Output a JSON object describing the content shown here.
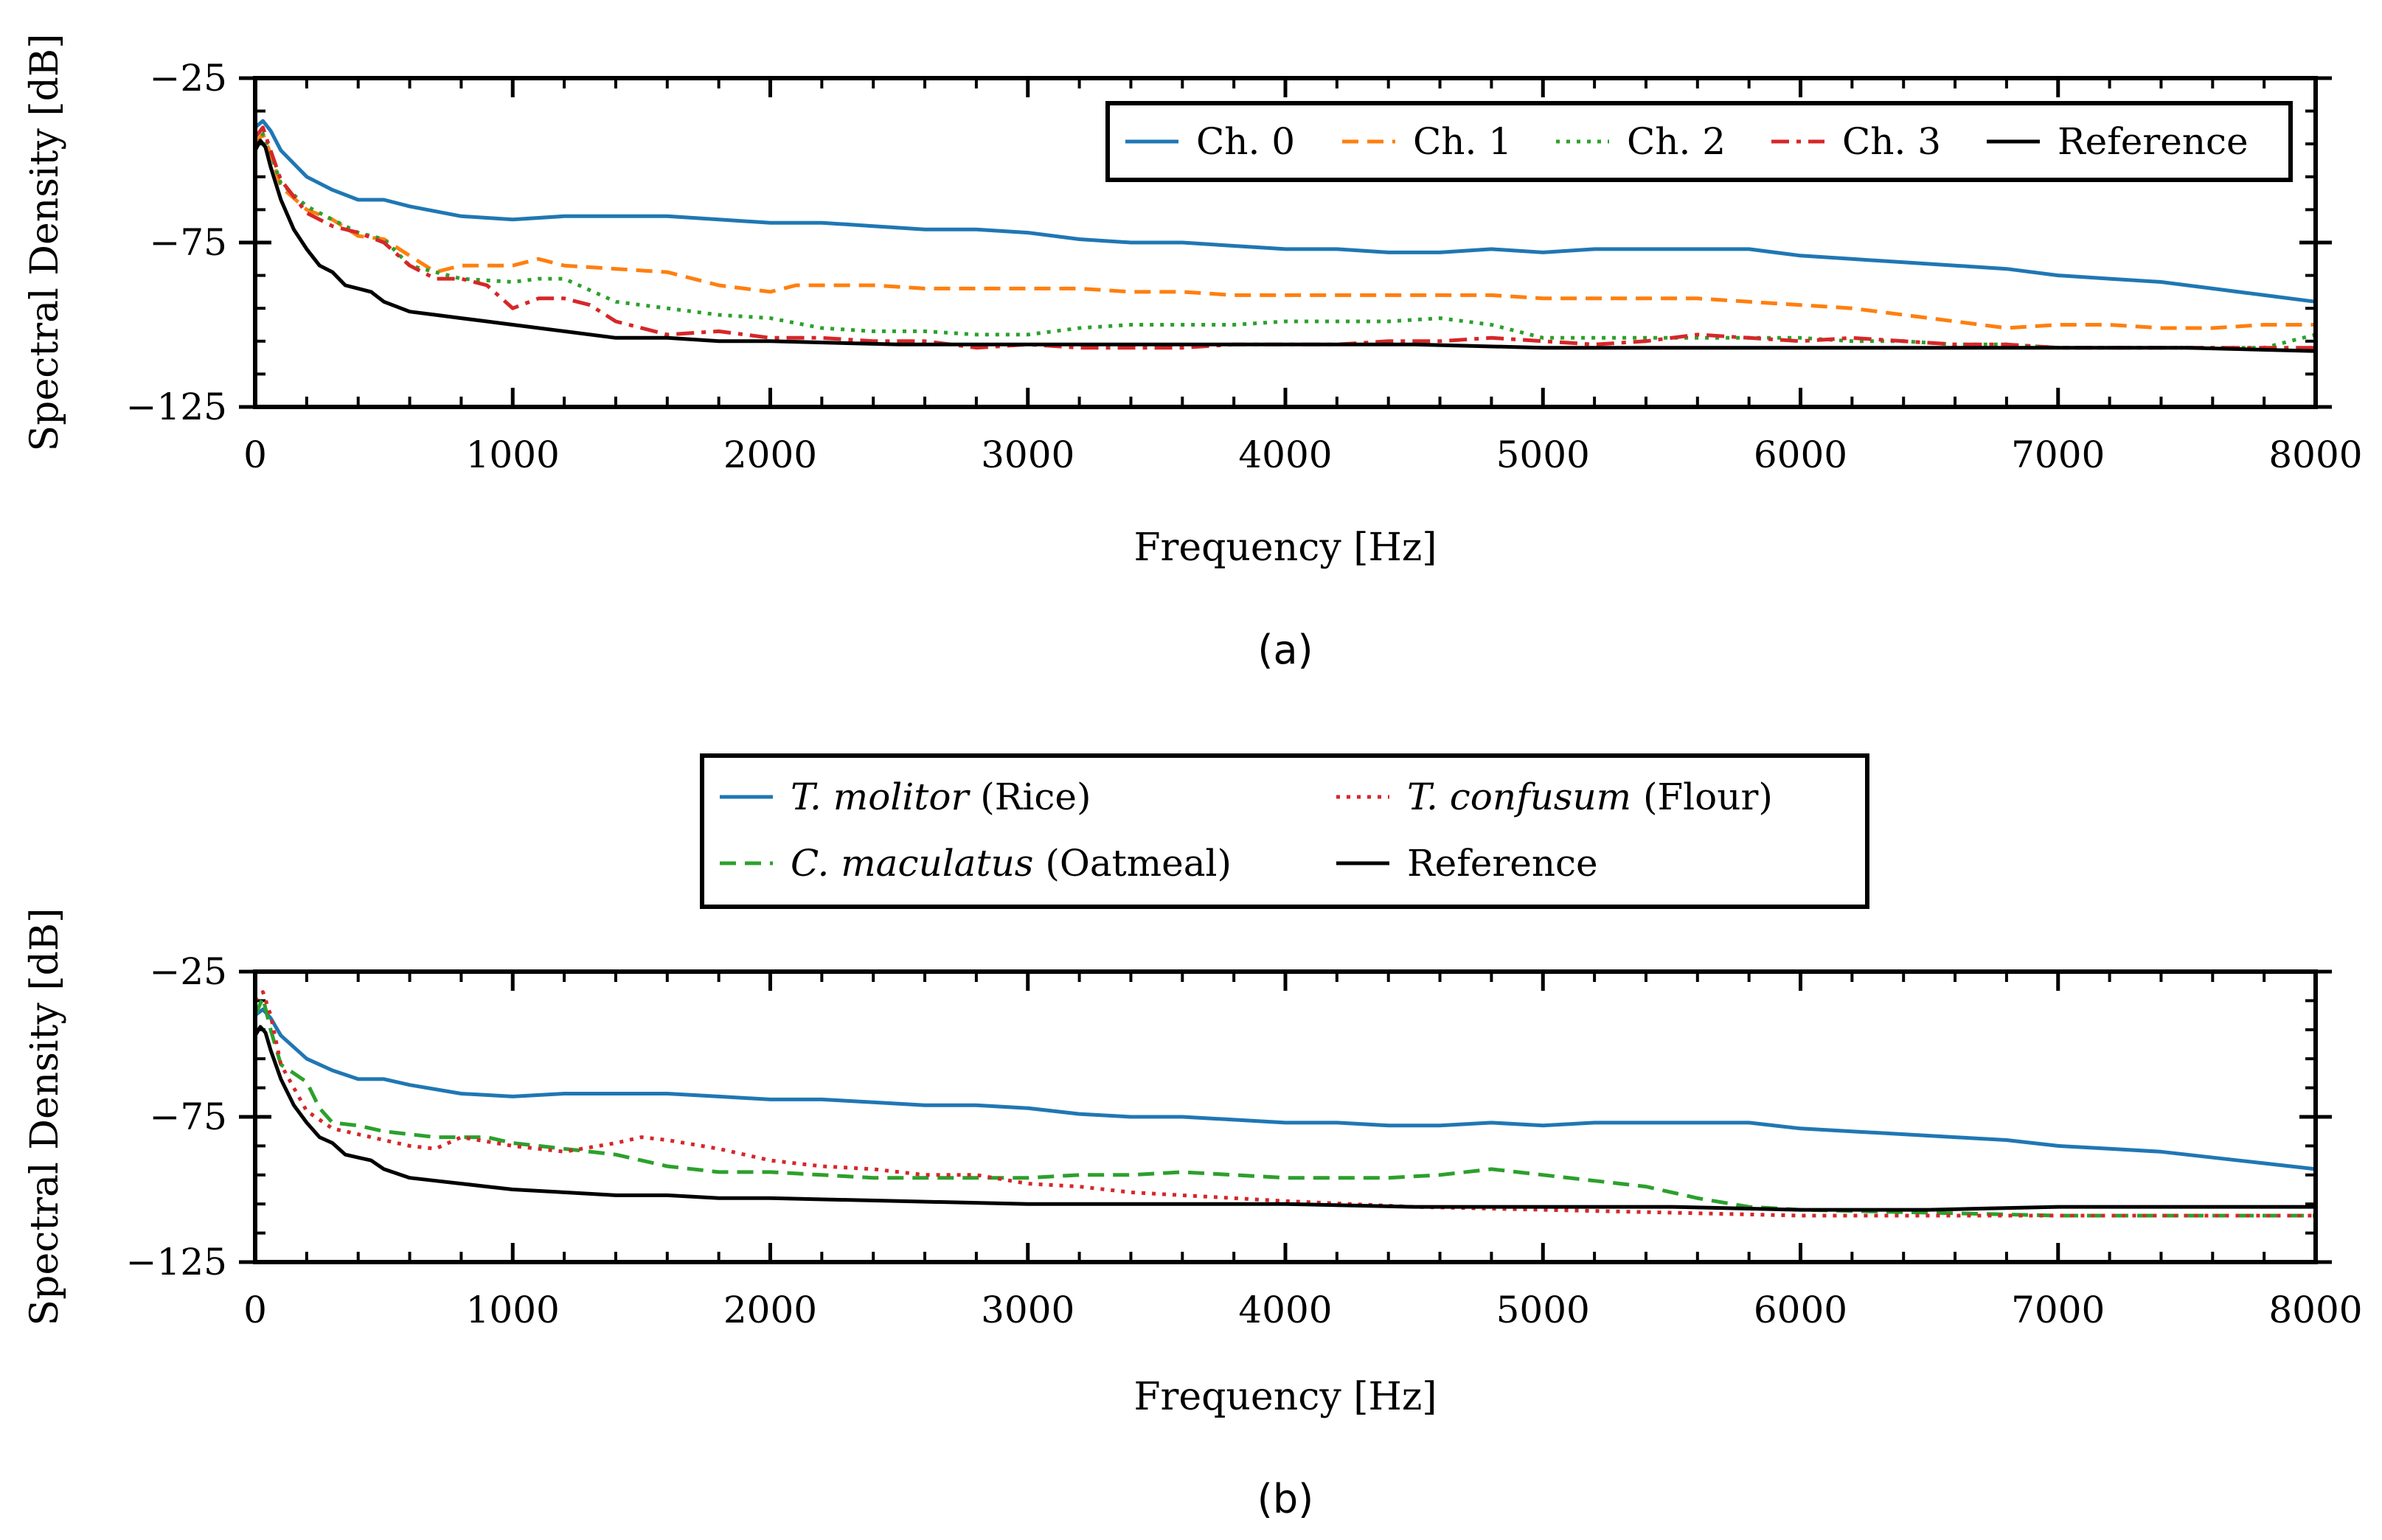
{
  "chart_data": [
    {
      "type": "line",
      "panel_label": "(a)",
      "xlabel": "Frequency [Hz]",
      "ylabel": "Spectral Density [dB]",
      "xlim": [
        0,
        8000
      ],
      "ylim": [
        -125,
        -25
      ],
      "xticks": [
        0,
        1000,
        2000,
        3000,
        4000,
        5000,
        6000,
        7000,
        8000
      ],
      "yticks": [
        -25,
        -75,
        -125
      ],
      "legend_placement": "top-right",
      "series": [
        {
          "name": "Ch. 0",
          "color": "#1f77b4",
          "style": "solid",
          "x": [
            0,
            30,
            60,
            100,
            200,
            300,
            400,
            500,
            600,
            800,
            1000,
            1200,
            1400,
            1600,
            1800,
            2000,
            2200,
            2400,
            2600,
            2800,
            3000,
            3200,
            3400,
            3600,
            3800,
            4000,
            4200,
            4400,
            4600,
            4800,
            5000,
            5200,
            5400,
            5600,
            5800,
            6000,
            6200,
            6400,
            6600,
            6800,
            7000,
            7200,
            7400,
            7600,
            7800,
            8000
          ],
          "values": [
            -40,
            -38,
            -41,
            -47,
            -55,
            -59,
            -62,
            -62,
            -64,
            -67,
            -68,
            -67,
            -67,
            -67,
            -68,
            -69,
            -69,
            -70,
            -71,
            -71,
            -72,
            -74,
            -75,
            -75,
            -76,
            -77,
            -77,
            -78,
            -78,
            -77,
            -78,
            -77,
            -77,
            -77,
            -77,
            -79,
            -80,
            -81,
            -82,
            -83,
            -85,
            -86,
            -87,
            -89,
            -91,
            -93
          ]
        },
        {
          "name": "Ch. 1",
          "color": "#ff7f0e",
          "style": "dashed",
          "x": [
            0,
            30,
            60,
            100,
            200,
            300,
            400,
            500,
            600,
            700,
            800,
            1000,
            1100,
            1200,
            1400,
            1600,
            1800,
            1900,
            2000,
            2100,
            2200,
            2400,
            2600,
            2800,
            3000,
            3200,
            3400,
            3600,
            3800,
            4000,
            4200,
            4400,
            4600,
            4800,
            5000,
            5200,
            5400,
            5600,
            5800,
            6000,
            6200,
            6400,
            6600,
            6800,
            7000,
            7200,
            7400,
            7600,
            7800,
            8000
          ],
          "values": [
            -45,
            -42,
            -48,
            -58,
            -65,
            -68,
            -73,
            -74,
            -79,
            -84,
            -82,
            -82,
            -80,
            -82,
            -83,
            -84,
            -88,
            -89,
            -90,
            -88,
            -88,
            -88,
            -89,
            -89,
            -89,
            -89,
            -90,
            -90,
            -91,
            -91,
            -91,
            -91,
            -91,
            -91,
            -92,
            -92,
            -92,
            -92,
            -93,
            -94,
            -95,
            -97,
            -99,
            -101,
            -100,
            -100,
            -101,
            -101,
            -100,
            -100
          ]
        },
        {
          "name": "Ch. 2",
          "color": "#2ca02c",
          "style": "dotted",
          "x": [
            0,
            30,
            60,
            100,
            200,
            300,
            400,
            500,
            600,
            700,
            800,
            1000,
            1100,
            1200,
            1400,
            1600,
            1800,
            2000,
            2200,
            2400,
            2600,
            2800,
            3000,
            3200,
            3400,
            3600,
            3800,
            4000,
            4200,
            4400,
            4600,
            4800,
            5000,
            5200,
            5400,
            5600,
            5800,
            6000,
            6200,
            6400,
            6600,
            6800,
            7000,
            7200,
            7400,
            7600,
            7800,
            8000
          ],
          "values": [
            -45,
            -42,
            -48,
            -57,
            -64,
            -68,
            -72,
            -74,
            -82,
            -84,
            -86,
            -87,
            -86,
            -86,
            -93,
            -95,
            -97,
            -98,
            -101,
            -102,
            -102,
            -103,
            -103,
            -101,
            -100,
            -100,
            -100,
            -99,
            -99,
            -99,
            -98,
            -100,
            -104,
            -104,
            -104,
            -104,
            -104,
            -104,
            -105,
            -105,
            -106,
            -106,
            -107,
            -107,
            -107,
            -107,
            -107,
            -103
          ]
        },
        {
          "name": "Ch. 3",
          "color": "#d62728",
          "style": "dashdot",
          "x": [
            0,
            30,
            60,
            100,
            200,
            300,
            400,
            500,
            600,
            700,
            800,
            900,
            1000,
            1100,
            1200,
            1300,
            1400,
            1600,
            1800,
            2000,
            2200,
            2400,
            2600,
            2800,
            3000,
            3200,
            3400,
            3600,
            3800,
            4000,
            4200,
            4400,
            4600,
            4800,
            5000,
            5200,
            5400,
            5600,
            5800,
            6000,
            6200,
            6400,
            6600,
            6800,
            7000,
            7200,
            7400,
            7600,
            7800,
            8000
          ],
          "values": [
            -43,
            -40,
            -47,
            -56,
            -66,
            -70,
            -72,
            -75,
            -82,
            -86,
            -86,
            -88,
            -95,
            -92,
            -92,
            -94,
            -99,
            -103,
            -102,
            -104,
            -104,
            -105,
            -105,
            -107,
            -106,
            -107,
            -107,
            -107,
            -106,
            -106,
            -106,
            -105,
            -105,
            -104,
            -105,
            -106,
            -105,
            -103,
            -104,
            -105,
            -104,
            -105,
            -106,
            -106,
            -107,
            -107,
            -107,
            -107,
            -107,
            -107
          ]
        },
        {
          "name": "Reference",
          "color": "#000000",
          "style": "solid",
          "x": [
            0,
            20,
            40,
            60,
            100,
            150,
            200,
            250,
            300,
            350,
            400,
            450,
            500,
            600,
            700,
            800,
            900,
            1000,
            1200,
            1400,
            1600,
            1800,
            2000,
            2500,
            3000,
            3500,
            4000,
            4500,
            5000,
            5500,
            6000,
            6500,
            7000,
            7500,
            8000
          ],
          "values": [
            -47,
            -44,
            -46,
            -52,
            -62,
            -71,
            -77,
            -82,
            -84,
            -88,
            -89,
            -90,
            -93,
            -96,
            -97,
            -98,
            -99,
            -100,
            -102,
            -104,
            -104,
            -105,
            -105,
            -106,
            -106,
            -106,
            -106,
            -106,
            -107,
            -107,
            -107,
            -107,
            -107,
            -107,
            -108
          ]
        }
      ]
    },
    {
      "type": "line",
      "panel_label": "(b)",
      "xlabel": "Frequency [Hz]",
      "ylabel": "Spectral Density [dB]",
      "xlim": [
        0,
        8000
      ],
      "ylim": [
        -125,
        -25
      ],
      "xticks": [
        0,
        1000,
        2000,
        3000,
        4000,
        5000,
        6000,
        7000,
        8000
      ],
      "yticks": [
        -25,
        -75,
        -125
      ],
      "legend_placement": "above plot",
      "series": [
        {
          "name_italic": "T. molitor",
          "name_plain": " (Rice)",
          "color": "#1f77b4",
          "style": "solid",
          "x": [
            0,
            30,
            60,
            100,
            200,
            300,
            400,
            500,
            600,
            800,
            1000,
            1200,
            1400,
            1600,
            1800,
            2000,
            2200,
            2400,
            2600,
            2800,
            3000,
            3200,
            3400,
            3600,
            3800,
            4000,
            4200,
            4400,
            4600,
            4800,
            5000,
            5200,
            5400,
            5600,
            5800,
            6000,
            6200,
            6400,
            6600,
            6800,
            7000,
            7200,
            7400,
            7600,
            7800,
            8000
          ],
          "values": [
            -40,
            -38,
            -41,
            -47,
            -55,
            -59,
            -62,
            -62,
            -64,
            -67,
            -68,
            -67,
            -67,
            -67,
            -68,
            -69,
            -69,
            -70,
            -71,
            -71,
            -72,
            -74,
            -75,
            -75,
            -76,
            -77,
            -77,
            -78,
            -78,
            -77,
            -78,
            -77,
            -77,
            -77,
            -77,
            -79,
            -80,
            -81,
            -82,
            -83,
            -85,
            -86,
            -87,
            -89,
            -91,
            -93
          ]
        },
        {
          "name_italic": "C. maculatus",
          "name_plain": " (Oatmeal)",
          "color": "#2ca02c",
          "style": "dashed",
          "x": [
            0,
            30,
            60,
            100,
            200,
            250,
            300,
            400,
            500,
            600,
            700,
            800,
            900,
            1000,
            1200,
            1400,
            1600,
            1800,
            2000,
            2200,
            2400,
            2600,
            2800,
            3000,
            3200,
            3400,
            3600,
            3800,
            4000,
            4200,
            4400,
            4600,
            4800,
            5000,
            5200,
            5400,
            5600,
            5800,
            6000,
            6500,
            7000,
            7500,
            8000
          ],
          "values": [
            -40,
            -34,
            -45,
            -57,
            -63,
            -72,
            -77,
            -78,
            -80,
            -81,
            -82,
            -82,
            -82,
            -84,
            -86,
            -88,
            -92,
            -94,
            -94,
            -95,
            -96,
            -96,
            -96,
            -96,
            -95,
            -95,
            -94,
            -95,
            -96,
            -96,
            -96,
            -95,
            -93,
            -95,
            -97,
            -99,
            -103,
            -106,
            -107,
            -108,
            -109,
            -109,
            -109
          ]
        },
        {
          "name_italic": "T. confusum",
          "name_plain": " (Flour)",
          "color": "#d62728",
          "style": "dotted",
          "x": [
            0,
            30,
            60,
            100,
            200,
            300,
            400,
            500,
            600,
            700,
            800,
            1000,
            1200,
            1400,
            1500,
            1600,
            1800,
            1900,
            2000,
            2200,
            2400,
            2600,
            2800,
            3000,
            3200,
            3400,
            3600,
            3800,
            4000,
            4500,
            5000,
            5500,
            6000,
            6500,
            7000,
            7500,
            8000
          ],
          "values": [
            -35,
            -32,
            -40,
            -57,
            -73,
            -79,
            -81,
            -83,
            -85,
            -86,
            -82,
            -85,
            -87,
            -84,
            -82,
            -83,
            -86,
            -88,
            -90,
            -92,
            -93,
            -95,
            -95,
            -98,
            -99,
            -101,
            -102,
            -103,
            -104,
            -106,
            -107,
            -108,
            -109,
            -109,
            -109,
            -109,
            -109
          ]
        },
        {
          "name_italic": "",
          "name_plain": "Reference",
          "color": "#000000",
          "style": "solid",
          "x": [
            0,
            20,
            40,
            60,
            100,
            150,
            200,
            250,
            300,
            350,
            400,
            450,
            500,
            600,
            700,
            800,
            900,
            1000,
            1200,
            1400,
            1600,
            1800,
            2000,
            2500,
            3000,
            3500,
            4000,
            4500,
            5000,
            5500,
            6000,
            6500,
            7000,
            7500,
            8000
          ],
          "values": [
            -47,
            -44,
            -46,
            -52,
            -62,
            -71,
            -77,
            -82,
            -84,
            -88,
            -89,
            -90,
            -93,
            -96,
            -97,
            -98,
            -99,
            -100,
            -101,
            -102,
            -102,
            -103,
            -103,
            -104,
            -105,
            -105,
            -105,
            -106,
            -106,
            -106,
            -107,
            -107,
            -106,
            -106,
            -106
          ]
        }
      ]
    }
  ]
}
